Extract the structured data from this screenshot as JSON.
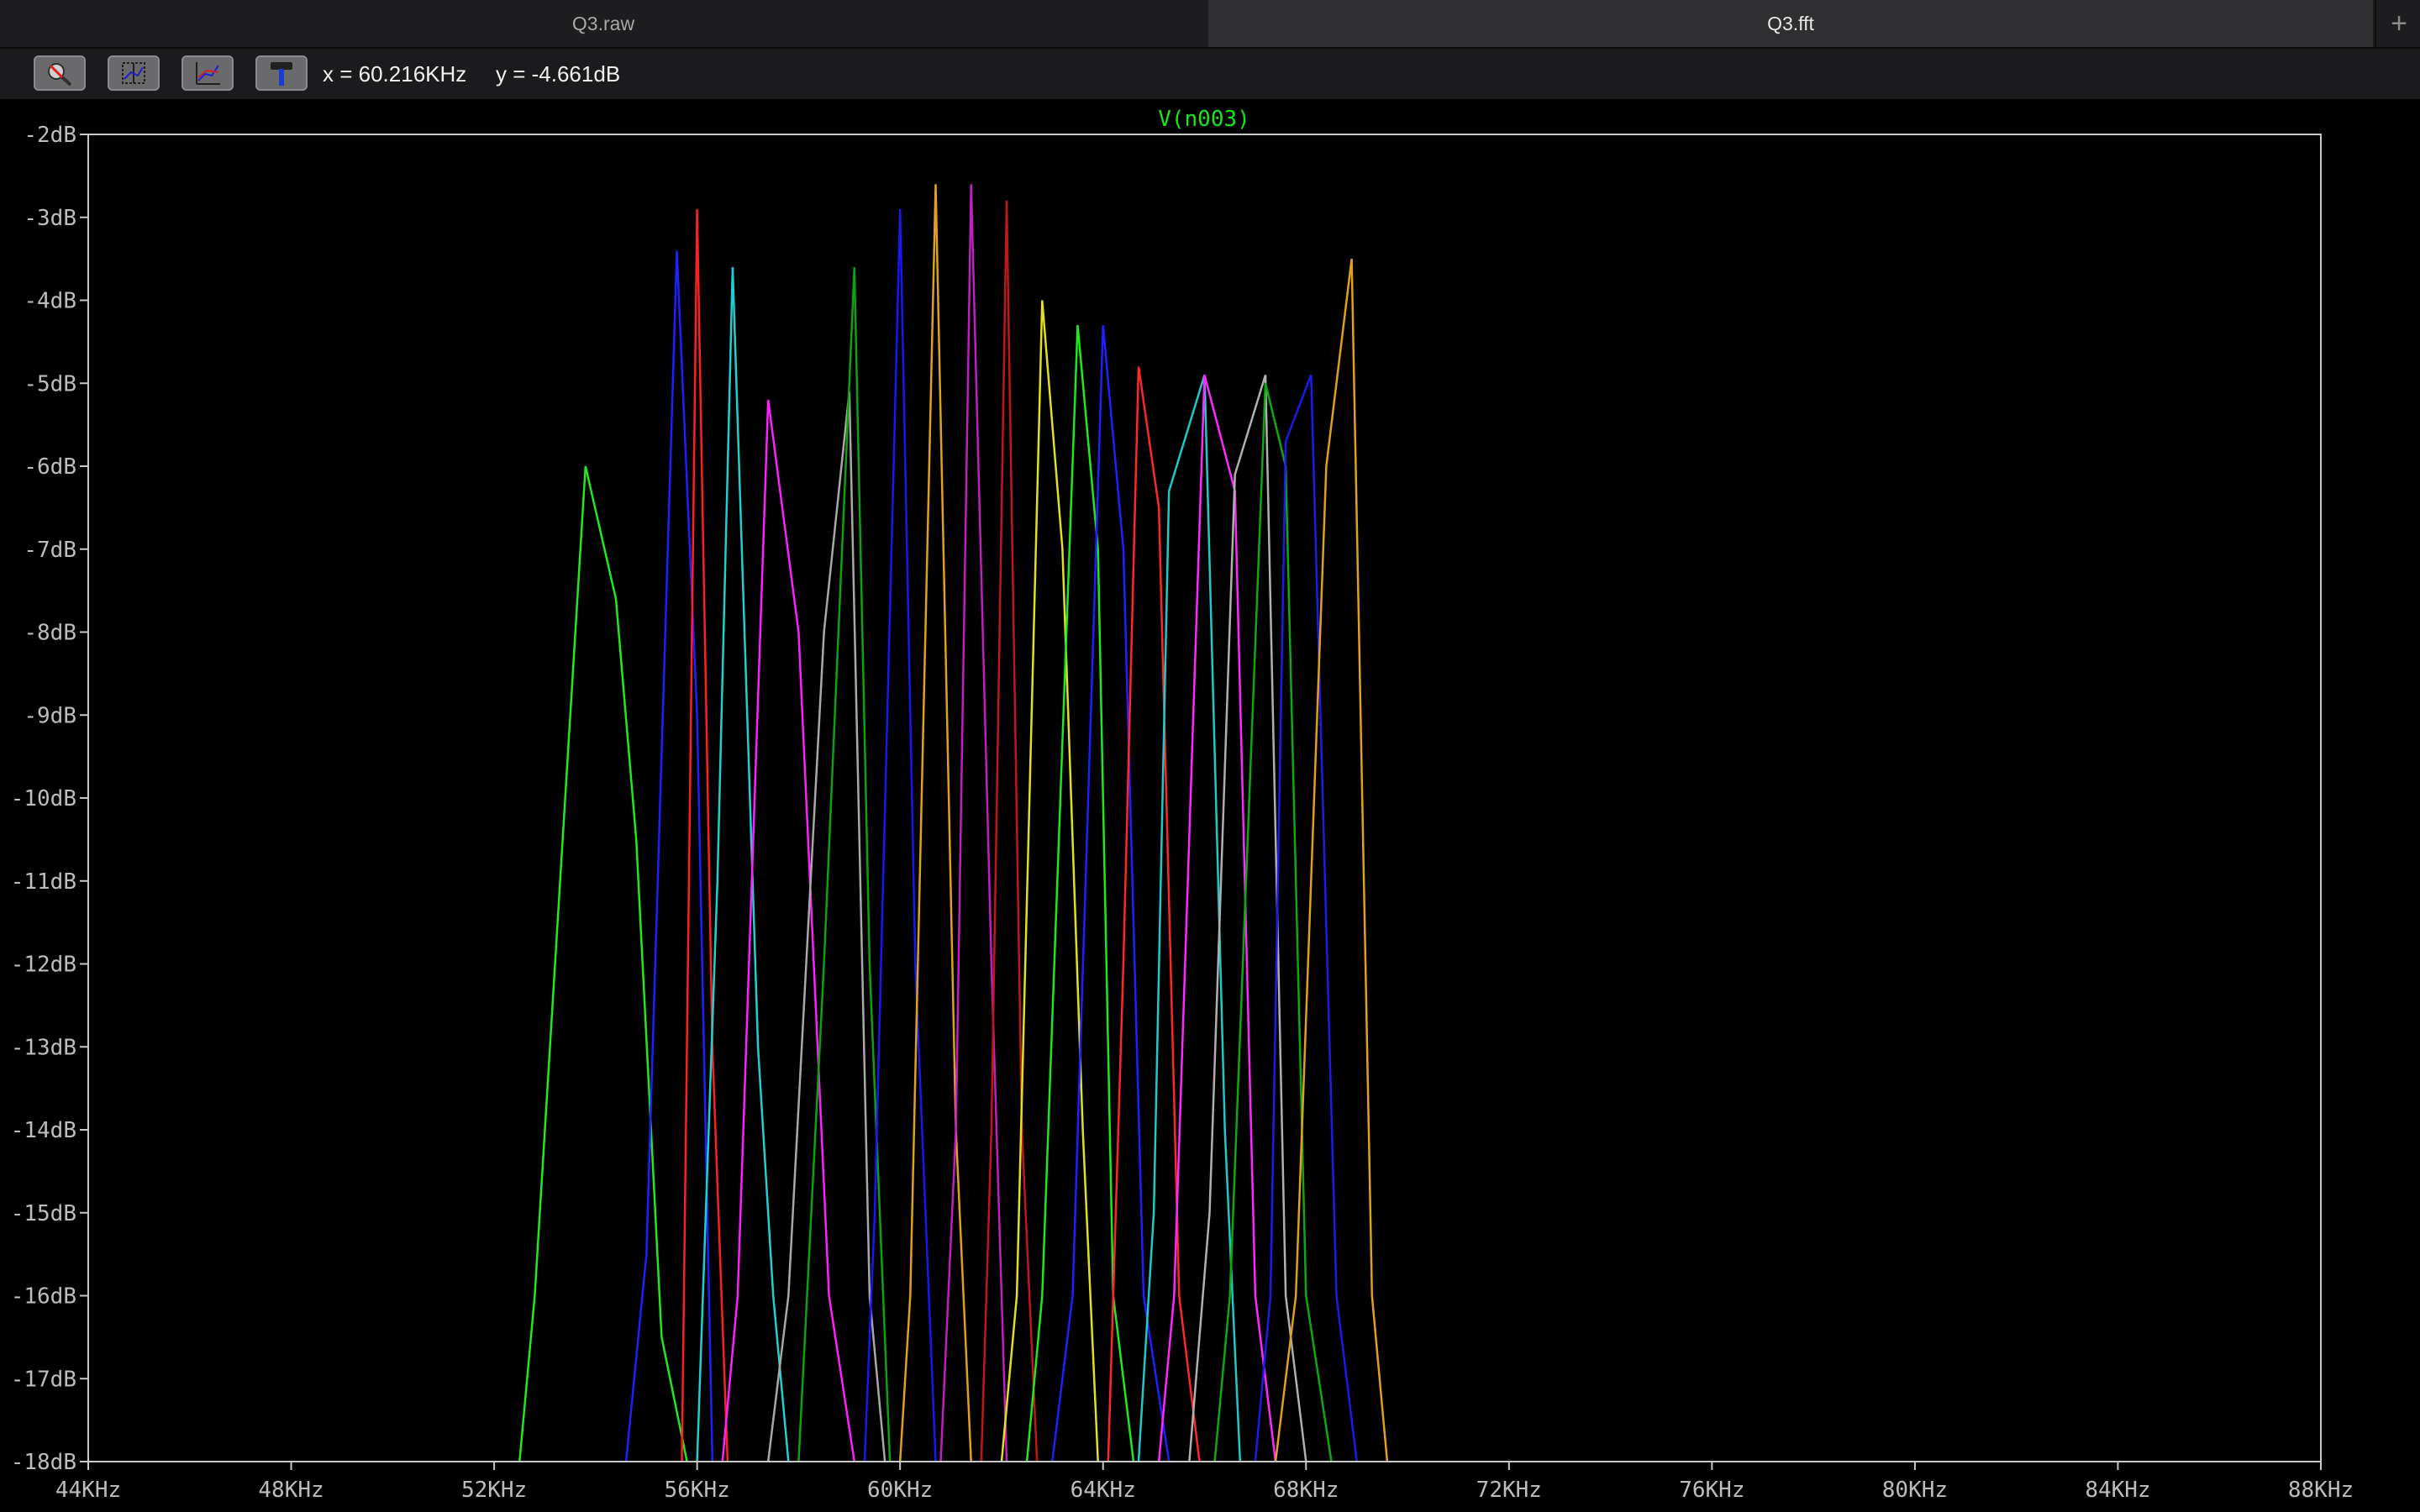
{
  "tabs": [
    {
      "label": "Q3.raw",
      "active": false
    },
    {
      "label": "Q3.fft",
      "active": true
    }
  ],
  "tab_add_label": "+",
  "toolbar": {
    "buttons": [
      {
        "name": "zoom-icon"
      },
      {
        "name": "fit-axes-icon"
      },
      {
        "name": "autorange-icon"
      },
      {
        "name": "hammer-icon"
      }
    ],
    "cursor_x": "x = 60.216KHz",
    "cursor_y": "y = -4.661dB"
  },
  "colors": {
    "background": "#000000",
    "axis": "#c8c8c8",
    "title": "#19e61a"
  },
  "chart_data": {
    "type": "line",
    "title": "V(n003)",
    "xlabel": "",
    "ylabel": "",
    "xlim": [
      44,
      88
    ],
    "ylim": [
      -18,
      -2
    ],
    "x_unit": "KHz",
    "y_unit": "dB",
    "grid": false,
    "x_ticks": [
      "44KHz",
      "48KHz",
      "52KHz",
      "56KHz",
      "60KHz",
      "64KHz",
      "68KHz",
      "72KHz",
      "76KHz",
      "80KHz",
      "84KHz",
      "88KHz"
    ],
    "y_ticks": [
      "-2dB",
      "-3dB",
      "-4dB",
      "-5dB",
      "-6dB",
      "-7dB",
      "-8dB",
      "-9dB",
      "-10dB",
      "-11dB",
      "-12dB",
      "-13dB",
      "-14dB",
      "-15dB",
      "-16dB",
      "-17dB",
      "-18dB"
    ],
    "series": [
      {
        "color": "#22e81e",
        "x": [
          52.5,
          52.8,
          53.8,
          54.4,
          54.8,
          55.3,
          55.8
        ],
        "y": [
          -18,
          -16,
          -6,
          -7.6,
          -10.5,
          -16.5,
          -18
        ]
      },
      {
        "color": "#1f1fff",
        "x": [
          54.6,
          55.0,
          55.6,
          56.0,
          56.3
        ],
        "y": [
          -18,
          -15.5,
          -3.4,
          -9,
          -18
        ]
      },
      {
        "color": "#ff2020",
        "x": [
          55.7,
          56.0,
          56.3,
          56.6
        ],
        "y": [
          -18,
          -2.9,
          -13,
          -18
        ]
      },
      {
        "color": "#20d0d0",
        "x": [
          56.0,
          56.4,
          56.7,
          57.2,
          57.5,
          57.8
        ],
        "y": [
          -18,
          -11,
          -3.6,
          -13,
          -16,
          -18
        ]
      },
      {
        "color": "#ff20ff",
        "x": [
          56.5,
          56.8,
          57.4,
          58.0,
          58.6,
          59.1
        ],
        "y": [
          -18,
          -16,
          -5.2,
          -8,
          -16,
          -18
        ]
      },
      {
        "color": "#a8a8a8",
        "x": [
          57.4,
          57.8,
          58.5,
          59.0,
          59.4,
          59.7
        ],
        "y": [
          -18,
          -16,
          -8,
          -5.1,
          -16,
          -18
        ]
      },
      {
        "color": "#10a010",
        "x": [
          58.0,
          58.5,
          59.1,
          59.4,
          59.8
        ],
        "y": [
          -18,
          -12,
          -3.6,
          -12,
          -18
        ]
      },
      {
        "color": "#1818f0",
        "x": [
          59.3,
          59.5,
          60.0,
          60.3,
          60.7
        ],
        "y": [
          -18,
          -15,
          -2.9,
          -12,
          -18
        ]
      },
      {
        "color": "#e0a020",
        "x": [
          60.0,
          60.2,
          60.7,
          61.1,
          61.4
        ],
        "y": [
          -18,
          -16,
          -2.6,
          -14,
          -18
        ]
      },
      {
        "color": "#c020c0",
        "x": [
          60.8,
          61.1,
          61.4,
          61.8,
          62.1
        ],
        "y": [
          -18,
          -14,
          -2.6,
          -12,
          -18
        ]
      },
      {
        "color": "#c01818",
        "x": [
          61.6,
          61.8,
          62.1,
          62.4,
          62.7
        ],
        "y": [
          -18,
          -14,
          -2.8,
          -14,
          -18
        ]
      },
      {
        "color": "#e0e020",
        "x": [
          62.0,
          62.3,
          62.8,
          63.2,
          63.6,
          63.9
        ],
        "y": [
          -18,
          -16,
          -4.0,
          -7,
          -14,
          -18
        ]
      },
      {
        "color": "#20e820",
        "x": [
          62.5,
          62.8,
          63.5,
          63.9,
          64.2,
          64.6
        ],
        "y": [
          -18,
          -16,
          -4.3,
          -7,
          -16,
          -18
        ]
      },
      {
        "color": "#2020ff",
        "x": [
          63.0,
          63.4,
          64.0,
          64.4,
          64.8,
          65.3
        ],
        "y": [
          -18,
          -16,
          -4.3,
          -7,
          -16,
          -18
        ]
      },
      {
        "color": "#ff2828",
        "x": [
          64.1,
          64.4,
          64.7,
          65.1,
          65.5,
          65.9
        ],
        "y": [
          -18,
          -12,
          -4.8,
          -6.5,
          -16,
          -18
        ]
      },
      {
        "color": "#20c8c8",
        "x": [
          64.7,
          65.0,
          65.3,
          66.0,
          66.4,
          66.7
        ],
        "y": [
          -18,
          -15,
          -6.3,
          -4.9,
          -14,
          -18
        ]
      },
      {
        "color": "#ff28ff",
        "x": [
          65.1,
          65.4,
          66.0,
          66.6,
          67.0,
          67.4
        ],
        "y": [
          -18,
          -16,
          -4.9,
          -6.3,
          -16,
          -18
        ]
      },
      {
        "color": "#b0b0b0",
        "x": [
          65.7,
          66.1,
          66.6,
          67.2,
          67.6,
          68.0
        ],
        "y": [
          -18,
          -15,
          -6.1,
          -4.9,
          -16,
          -18
        ]
      },
      {
        "color": "#10a810",
        "x": [
          66.2,
          66.5,
          67.2,
          67.6,
          68.0,
          68.5
        ],
        "y": [
          -18,
          -16,
          -5.0,
          -6,
          -16,
          -18
        ]
      },
      {
        "color": "#1c1ce8",
        "x": [
          67.0,
          67.3,
          67.6,
          68.1,
          68.6,
          69.0
        ],
        "y": [
          -18,
          -16,
          -5.7,
          -4.9,
          -16,
          -18
        ]
      },
      {
        "color": "#e0a020",
        "x": [
          67.4,
          67.8,
          68.4,
          68.9,
          69.3,
          69.6
        ],
        "y": [
          -18,
          -16,
          -6.0,
          -3.5,
          -16,
          -18
        ]
      }
    ]
  }
}
